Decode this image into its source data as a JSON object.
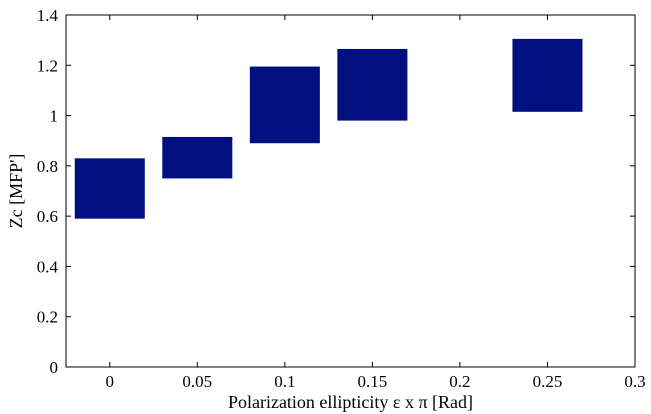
{
  "chart_data": {
    "type": "bar",
    "subtype": "floating-range-boxes",
    "title": "",
    "xlabel": "Polarization ellipticity ε x π [Rad]",
    "ylabel": "Zc [MFP']",
    "xlim": [
      -0.025,
      0.3
    ],
    "ylim": [
      0,
      1.4
    ],
    "xticks": [
      0,
      0.05,
      0.1,
      0.15,
      0.2,
      0.25,
      0.3
    ],
    "xtick_labels": [
      "0",
      "0.05",
      "0.1",
      "0.15",
      "0.2",
      "0.25",
      "0.3"
    ],
    "yticks": [
      0,
      0.2,
      0.4,
      0.6,
      0.8,
      1.0,
      1.2,
      1.4
    ],
    "ytick_labels": [
      "0",
      "0.2",
      "0.4",
      "0.6",
      "0.8",
      "1",
      "1.2",
      "1.4"
    ],
    "grid": false,
    "bar_color": "#00107e",
    "box_width": 0.04,
    "boxes": [
      {
        "x": 0.0,
        "low": 0.59,
        "high": 0.83
      },
      {
        "x": 0.05,
        "low": 0.75,
        "high": 0.915
      },
      {
        "x": 0.1,
        "low": 0.89,
        "high": 1.195
      },
      {
        "x": 0.15,
        "low": 0.98,
        "high": 1.265
      },
      {
        "x": 0.25,
        "low": 1.015,
        "high": 1.305
      }
    ]
  }
}
